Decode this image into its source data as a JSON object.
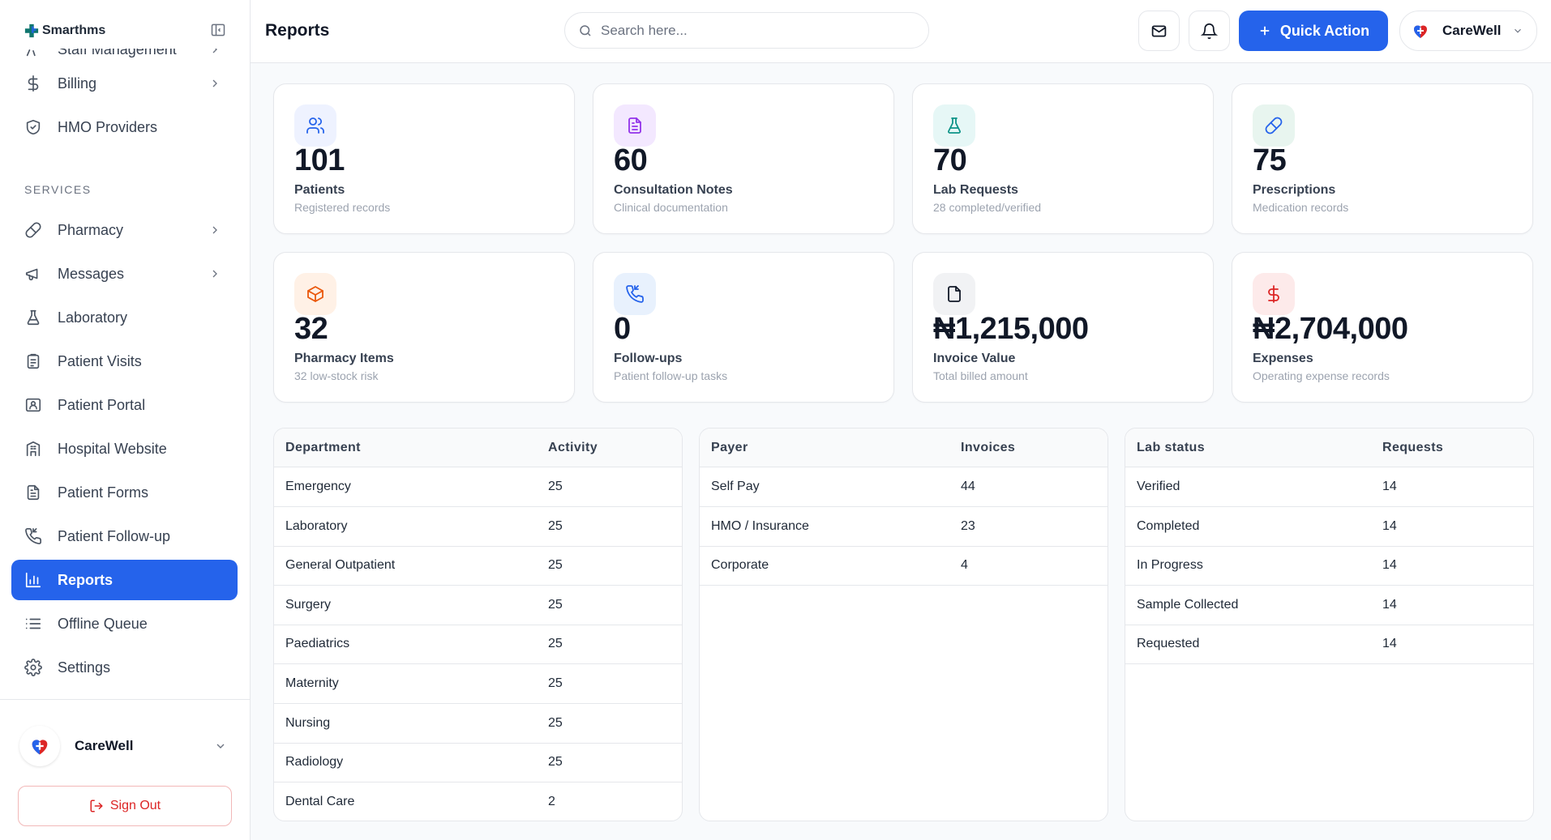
{
  "brand": {
    "name": "Smarthms"
  },
  "sidebar": {
    "items": [
      {
        "label": "Staff Management",
        "icon": "users-cog-icon",
        "has_chevron": true
      },
      {
        "label": "Billing",
        "icon": "dollar-icon",
        "has_chevron": true
      },
      {
        "label": "HMO Providers",
        "icon": "shield-icon",
        "has_chevron": false
      }
    ],
    "section_label": "SERVICES",
    "services": [
      {
        "label": "Pharmacy",
        "icon": "pill-icon",
        "has_chevron": true
      },
      {
        "label": "Messages",
        "icon": "megaphone-icon",
        "has_chevron": true
      },
      {
        "label": "Laboratory",
        "icon": "flask-icon",
        "has_chevron": false
      },
      {
        "label": "Patient Visits",
        "icon": "clipboard-icon",
        "has_chevron": false
      },
      {
        "label": "Patient Portal",
        "icon": "id-card-icon",
        "has_chevron": false
      },
      {
        "label": "Hospital Website",
        "icon": "building-icon",
        "has_chevron": false
      },
      {
        "label": "Patient Forms",
        "icon": "document-icon",
        "has_chevron": false
      },
      {
        "label": "Patient Follow-up",
        "icon": "phone-icon",
        "has_chevron": false
      },
      {
        "label": "Reports",
        "icon": "bar-chart-icon",
        "has_chevron": false,
        "active": true
      },
      {
        "label": "Offline Queue",
        "icon": "list-icon",
        "has_chevron": false
      },
      {
        "label": "Settings",
        "icon": "gear-icon",
        "has_chevron": false
      }
    ],
    "org_name": "CareWell",
    "sign_out_label": "Sign Out"
  },
  "header": {
    "title": "Reports",
    "search_placeholder": "Search here...",
    "quick_action_label": "Quick Action",
    "user_name": "CareWell"
  },
  "stats": [
    {
      "value": "101",
      "title": "Patients",
      "subtitle": "Registered records",
      "icon": "users-icon",
      "color": "#2563eb",
      "bg": "#eef2ff"
    },
    {
      "value": "60",
      "title": "Consultation Notes",
      "subtitle": "Clinical documentation",
      "icon": "document-icon",
      "color": "#9333ea",
      "bg": "#f3e8ff"
    },
    {
      "value": "70",
      "title": "Lab Requests",
      "subtitle": "28 completed/verified",
      "icon": "flask-icon",
      "color": "#0d9488",
      "bg": "#e6f7f6"
    },
    {
      "value": "75",
      "title": "Prescriptions",
      "subtitle": "Medication records",
      "icon": "pill-icon",
      "color": "#2563eb",
      "bg": "#e8f5ef"
    },
    {
      "value": "32",
      "title": "Pharmacy Items",
      "subtitle": "32 low-stock risk",
      "icon": "box-icon",
      "color": "#ea580c",
      "bg": "#fff1e6"
    },
    {
      "value": "0",
      "title": "Follow-ups",
      "subtitle": "Patient follow-up tasks",
      "icon": "phone-icon",
      "color": "#2563eb",
      "bg": "#e8f1fd"
    },
    {
      "value": "₦1,215,000",
      "title": "Invoice Value",
      "subtitle": "Total billed amount",
      "icon": "file-icon",
      "color": "#111827",
      "bg": "#f1f2f4"
    },
    {
      "value": "₦2,704,000",
      "title": "Expenses",
      "subtitle": "Operating expense records",
      "icon": "dollar-icon",
      "color": "#dc2626",
      "bg": "#fdeaea"
    }
  ],
  "tables": [
    {
      "headers": [
        "Department",
        "Activity"
      ],
      "rows": [
        [
          "Emergency",
          "25"
        ],
        [
          "Laboratory",
          "25"
        ],
        [
          "General Outpatient",
          "25"
        ],
        [
          "Surgery",
          "25"
        ],
        [
          "Paediatrics",
          "25"
        ],
        [
          "Maternity",
          "25"
        ],
        [
          "Nursing",
          "25"
        ],
        [
          "Radiology",
          "25"
        ],
        [
          "Dental Care",
          "2"
        ]
      ]
    },
    {
      "headers": [
        "Payer",
        "Invoices"
      ],
      "rows": [
        [
          "Self Pay",
          "44"
        ],
        [
          "HMO / Insurance",
          "23"
        ],
        [
          "Corporate",
          "4"
        ]
      ]
    },
    {
      "headers": [
        "Lab status",
        "Requests"
      ],
      "rows": [
        [
          "Verified",
          "14"
        ],
        [
          "Completed",
          "14"
        ],
        [
          "In Progress",
          "14"
        ],
        [
          "Sample Collected",
          "14"
        ],
        [
          "Requested",
          "14"
        ]
      ]
    }
  ]
}
